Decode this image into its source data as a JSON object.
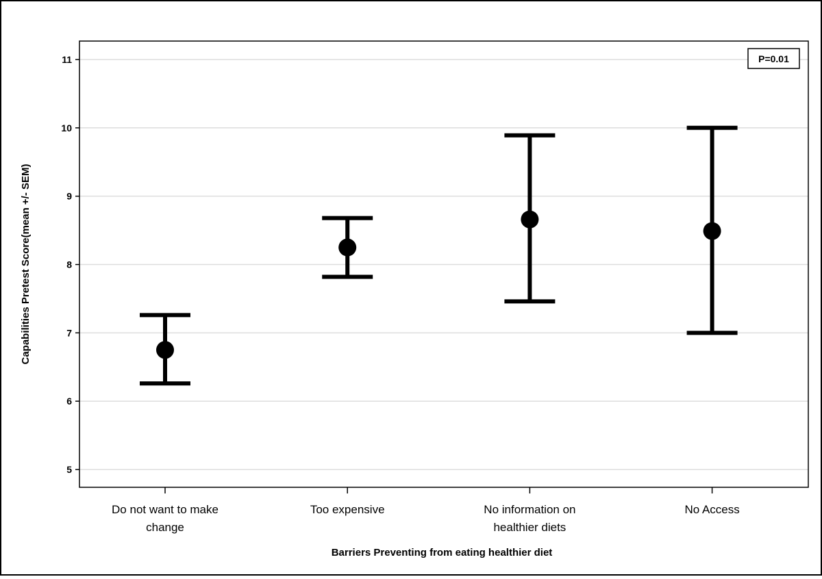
{
  "chart_data": {
    "type": "scatter",
    "subtype": "mean-with-error-bars",
    "xlabel": "Barriers Preventing from eating healthier diet",
    "ylabel": "Capabilities Pretest Score(mean +/- SEM)",
    "categories": [
      [
        "Do not want to make",
        "change"
      ],
      [
        "Too expensive"
      ],
      [
        "No information on",
        "healthier diets"
      ],
      [
        "No Access"
      ]
    ],
    "mean": [
      6.75,
      8.25,
      8.66,
      8.49
    ],
    "upper": [
      7.26,
      8.68,
      9.89,
      10.0
    ],
    "lower": [
      6.26,
      7.82,
      7.46,
      7.0
    ],
    "yticks": [
      5,
      6,
      7,
      8,
      9,
      10,
      11
    ],
    "ylim": [
      4.74,
      11.27
    ],
    "grid": "horizontal",
    "annotation": "P=0.01",
    "colors": {
      "marks": "#000000",
      "grid": "#dddddd"
    }
  }
}
